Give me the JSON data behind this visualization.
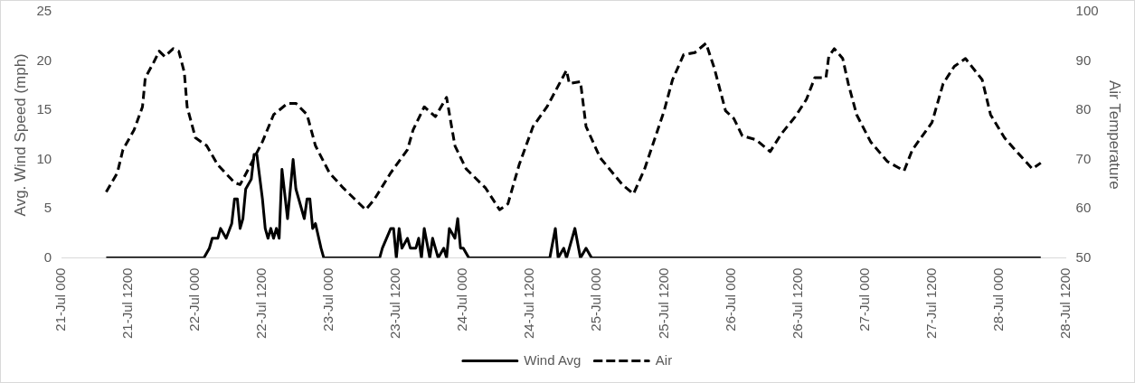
{
  "chart_data": {
    "type": "line",
    "ylabel": "Avg. Wind Speed (mph)",
    "y2label": "Air Temperature",
    "xlim": [
      "--07-21T00:00",
      "--07-28T12:00"
    ],
    "xticks": [
      {
        "value": "--07-21T00:00",
        "label": "21-Jul 000"
      },
      {
        "value": "--07-21T12:00",
        "label": "21-Jul 1200"
      },
      {
        "value": "--07-22T00:00",
        "label": "22-Jul 000"
      },
      {
        "value": "--07-22T12:00",
        "label": "22-Jul 1200"
      },
      {
        "value": "--07-23T00:00",
        "label": "23-Jul 000"
      },
      {
        "value": "--07-23T12:00",
        "label": "23-Jul 1200"
      },
      {
        "value": "--07-24T00:00",
        "label": "24-Jul 000"
      },
      {
        "value": "--07-24T12:00",
        "label": "24-Jul 1200"
      },
      {
        "value": "--07-25T00:00",
        "label": "25-Jul 000"
      },
      {
        "value": "--07-25T12:00",
        "label": "25-Jul 1200"
      },
      {
        "value": "--07-26T00:00",
        "label": "26-Jul 000"
      },
      {
        "value": "--07-26T12:00",
        "label": "26-Jul 1200"
      },
      {
        "value": "--07-27T00:00",
        "label": "27-Jul 000"
      },
      {
        "value": "--07-27T12:00",
        "label": "27-Jul 1200"
      },
      {
        "value": "--07-28T00:00",
        "label": "28-Jul 000"
      },
      {
        "value": "--07-28T12:00",
        "label": "28-Jul 1200"
      }
    ],
    "ylim": [
      0,
      25
    ],
    "yticks": [
      0,
      5,
      10,
      15,
      20,
      25
    ],
    "y2lim": [
      50,
      100
    ],
    "y2ticks": [
      50,
      60,
      70,
      80,
      90,
      100
    ],
    "grid": false,
    "legend": "bottom",
    "marker": "none",
    "series": [
      {
        "name": "Wind Avg",
        "color": "#000000",
        "line_style": "solid",
        "axis": "y",
        "x": [
          "--07-21T08:00",
          "--07-22T01:30",
          "--07-22T02:30",
          "--07-22T03:00",
          "--07-22T04:00",
          "--07-22T04:30",
          "--07-22T05:30",
          "--07-22T06:30",
          "--07-22T07:00",
          "--07-22T07:30",
          "--07-22T08:00",
          "--07-22T08:30",
          "--07-22T09:00",
          "--07-22T10:00",
          "--07-22T10:30",
          "--07-22T11:00",
          "--07-22T12:00",
          "--07-22T12:30",
          "--07-22T13:00",
          "--07-22T13:30",
          "--07-22T14:00",
          "--07-22T14:30",
          "--07-22T15:00",
          "--07-22T15:30",
          "--07-22T16:30",
          "--07-22T17:30",
          "--07-22T18:00",
          "--07-22T19:30",
          "--07-22T20:00",
          "--07-22T20:30",
          "--07-22T21:00",
          "--07-22T21:30",
          "--07-22T22:30",
          "--07-22T23:00",
          "--07-23T09:00",
          "--07-23T09:30",
          "--07-23T11:00",
          "--07-23T11:30",
          "--07-23T12:00",
          "--07-23T12:30",
          "--07-23T13:00",
          "--07-23T14:00",
          "--07-23T14:30",
          "--07-23T15:30",
          "--07-23T16:00",
          "--07-23T16:30",
          "--07-23T17:00",
          "--07-23T18:00",
          "--07-23T18:30",
          "--07-23T19:30",
          "--07-23T20:30",
          "--07-23T21:00",
          "--07-23T21:30",
          "--07-23T22:30",
          "--07-23T23:00",
          "--07-23T23:30",
          "--07-24T00:00",
          "--07-24T01:00",
          "--07-24T15:30",
          "--07-24T16:30",
          "--07-24T17:00",
          "--07-24T18:00",
          "--07-24T18:30",
          "--07-24T20:00",
          "--07-24T21:00",
          "--07-24T22:00",
          "--07-24T23:00",
          "--07-28T07:30"
        ],
        "values": [
          0,
          0,
          1,
          2,
          2,
          3,
          2,
          3.5,
          6,
          6,
          3,
          4,
          7,
          8,
          10.5,
          10.5,
          6,
          3,
          2,
          3,
          2,
          3,
          2,
          9,
          4,
          10,
          7,
          4,
          6,
          6,
          3,
          3.5,
          1,
          0,
          0,
          1,
          3,
          3,
          0,
          3,
          1,
          2,
          1,
          1,
          2,
          0,
          3,
          0,
          2,
          0,
          1,
          0,
          3,
          2,
          4,
          1,
          1,
          0,
          0,
          3,
          0,
          1,
          0,
          3,
          0,
          1,
          0,
          0
        ]
      },
      {
        "name": "Air",
        "color": "#000000",
        "line_style": "dashed",
        "axis": "y2",
        "x": [
          "--07-21T08:00",
          "--07-21T10:00",
          "--07-21T11:00",
          "--07-21T13:00",
          "--07-21T14:30",
          "--07-21T15:00",
          "--07-21T16:30",
          "--07-21T17:30",
          "--07-21T18:30",
          "--07-21T20:00",
          "--07-21T21:00",
          "--07-21T22:00",
          "--07-21T22:30",
          "--07-22T00:00",
          "--07-22T02:00",
          "--07-22T04:00",
          "--07-22T07:00",
          "--07-22T08:00",
          "--07-22T09:30",
          "--07-22T12:00",
          "--07-22T14:00",
          "--07-22T16:30",
          "--07-22T18:00",
          "--07-22T20:00",
          "--07-22T21:30",
          "--07-23T00:00",
          "--07-23T02:30",
          "--07-23T06:30",
          "--07-23T08:00",
          "--07-23T11:00",
          "--07-23T14:00",
          "--07-23T15:00",
          "--07-23T17:00",
          "--07-23T19:00",
          "--07-23T21:00",
          "--07-23T22:30",
          "--07-24T00:30",
          "--07-24T04:00",
          "--07-24T06:30",
          "--07-24T08:00",
          "--07-24T10:00",
          "--07-24T12:30",
          "--07-24T15:00",
          "--07-24T18:30",
          "--07-24T19:00",
          "--07-24T21:00",
          "--07-24T22:00",
          "--07-25T00:30",
          "--07-25T04:30",
          "--07-25T06:30",
          "--07-25T08:30",
          "--07-25T12:00",
          "--07-25T13:30",
          "--07-25T15:30",
          "--07-25T17:30",
          "--07-25T19:30",
          "--07-25T21:00",
          "--07-25T23:00",
          "--07-26T00:30",
          "--07-26T02:00",
          "--07-26T04:30",
          "--07-26T07:00",
          "--07-26T09:00",
          "--07-26T11:30",
          "--07-26T13:30",
          "--07-26T15:00",
          "--07-26T17:00",
          "--07-26T17:30",
          "--07-26T18:30",
          "--07-26T20:00",
          "--07-26T21:00",
          "--07-26T22:30",
          "--07-27T01:00",
          "--07-27T04:00",
          "--07-27T07:00",
          "--07-27T08:30",
          "--07-27T12:00",
          "--07-27T14:00",
          "--07-27T16:00",
          "--07-27T18:00",
          "--07-27T21:00",
          "--07-27T22:30",
          "--07-28T01:00",
          "--07-28T03:30",
          "--07-28T06:00",
          "--07-28T07:30"
        ],
        "values": [
          63.4,
          67.3,
          72,
          76,
          80.7,
          86.6,
          89.7,
          92,
          90.9,
          92.5,
          92,
          87.7,
          80.7,
          74.4,
          72.8,
          68.9,
          65.3,
          64.9,
          68.1,
          73.6,
          79.1,
          81.4,
          81.4,
          79.1,
          72.8,
          67.3,
          64.2,
          59.8,
          61.8,
          67.3,
          72,
          76,
          80.7,
          78.7,
          82.6,
          72.8,
          68.1,
          64.2,
          59.8,
          61,
          68.9,
          76.7,
          80.7,
          88.1,
          85.4,
          85.8,
          76.7,
          70.4,
          64.9,
          63,
          68.1,
          79.9,
          86.2,
          91.3,
          91.7,
          93.6,
          88.5,
          79.9,
          78.3,
          74.8,
          74,
          71.6,
          75.2,
          78.7,
          82.2,
          86.6,
          86.6,
          90.9,
          92.5,
          90.5,
          85.4,
          79.1,
          73.6,
          69.6,
          67.7,
          72,
          77.5,
          85.4,
          88.9,
          90.5,
          86.2,
          79.1,
          74.4,
          71.2,
          68.1,
          69.3
        ]
      }
    ]
  }
}
